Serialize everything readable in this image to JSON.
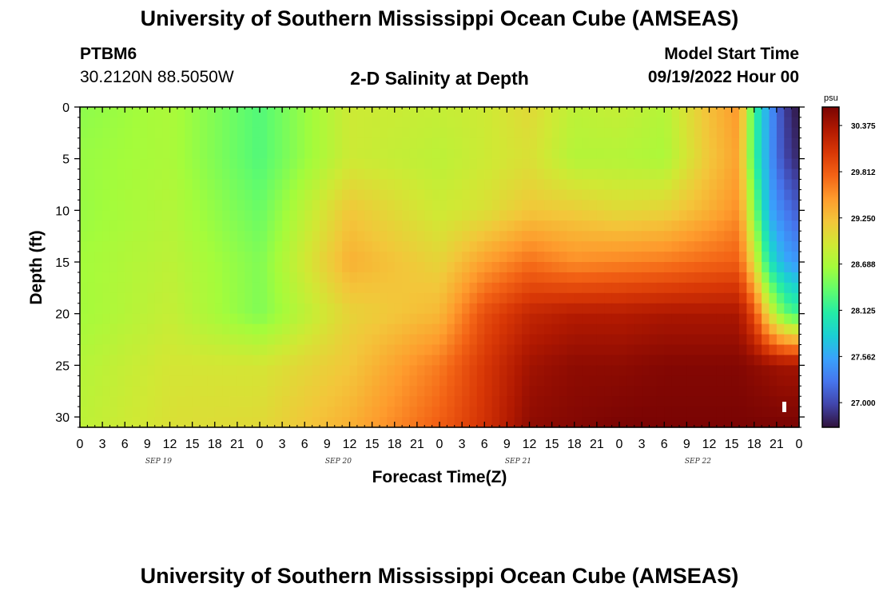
{
  "header": {
    "title": "University of Southern Mississippi Ocean Cube (AMSEAS)",
    "station": "PTBM6",
    "coordinates": "30.2120N  88.5050W",
    "subtitle": "2-D Salinity at Depth",
    "model_start_label": "Model Start Time",
    "model_start_value": "09/19/2022 Hour 00"
  },
  "footer": {
    "title": "University of Southern Mississippi Ocean Cube (AMSEAS)"
  },
  "chart_data": {
    "type": "heatmap",
    "xlabel": "Forecast Time(Z)",
    "ylabel": "Depth (ft)",
    "x_hours": [
      0,
      96
    ],
    "x_tick_labels": [
      "0",
      "3",
      "6",
      "9",
      "12",
      "15",
      "18",
      "21",
      "0",
      "3",
      "6",
      "9",
      "12",
      "15",
      "18",
      "21",
      "0",
      "3",
      "6",
      "9",
      "12",
      "15",
      "18",
      "21",
      "0",
      "3",
      "6",
      "9",
      "12",
      "15",
      "18",
      "21",
      "0"
    ],
    "day_labels": [
      "SEP 19",
      "SEP 20",
      "SEP 21",
      "SEP 22"
    ],
    "ylim": [
      0,
      31
    ],
    "y_ticks": [
      0,
      5,
      10,
      15,
      20,
      25,
      30
    ],
    "colorbar": {
      "unit": "psu",
      "min": 26.7,
      "max": 30.6,
      "ticks": [
        "30.375",
        "29.812",
        "29.250",
        "28.688",
        "28.125",
        "27.562",
        "27.000"
      ],
      "tick_values": [
        30.375,
        29.812,
        29.25,
        28.688,
        28.125,
        27.562,
        27.0
      ],
      "colormap": [
        "#30123b",
        "#4145ab",
        "#4675ed",
        "#39a2fc",
        "#1bcfd4",
        "#24eca6",
        "#61fc6c",
        "#a4fc3b",
        "#d1e834",
        "#f3c63a",
        "#fe9b2d",
        "#f36315",
        "#d93806",
        "#b11901",
        "#7a0403"
      ]
    },
    "time_hours": [
      0,
      12,
      24,
      36,
      48,
      54,
      60,
      66,
      72,
      78,
      84,
      88,
      90,
      92,
      94,
      96
    ],
    "depths_ft": [
      0,
      5,
      10,
      15,
      20,
      25,
      31
    ],
    "salinity_psu": [
      [
        28.55,
        28.7,
        28.3,
        28.9,
        28.85,
        28.9,
        29.05,
        28.8,
        28.85,
        28.75,
        29.25,
        29.5,
        28.2,
        27.5,
        26.95,
        26.7
      ],
      [
        28.6,
        28.7,
        28.3,
        28.9,
        28.8,
        28.9,
        29.0,
        28.75,
        28.75,
        28.7,
        29.2,
        29.45,
        28.2,
        27.5,
        27.0,
        26.8
      ],
      [
        28.6,
        28.75,
        28.4,
        29.2,
        28.9,
        29.0,
        29.2,
        29.15,
        29.05,
        29.1,
        29.35,
        29.55,
        28.5,
        27.6,
        27.3,
        27.1
      ],
      [
        28.65,
        28.8,
        28.5,
        29.35,
        29.1,
        29.45,
        29.7,
        29.55,
        29.6,
        29.65,
        29.75,
        29.8,
        29.0,
        28.0,
        27.6,
        27.45
      ],
      [
        28.65,
        28.85,
        28.5,
        29.1,
        29.3,
        29.9,
        30.2,
        30.3,
        30.3,
        30.35,
        30.35,
        30.35,
        29.9,
        29.0,
        28.4,
        28.2
      ],
      [
        28.75,
        28.95,
        28.95,
        29.2,
        29.65,
        30.05,
        30.4,
        30.5,
        30.5,
        30.55,
        30.55,
        30.55,
        30.5,
        30.45,
        30.4,
        30.4
      ],
      [
        28.8,
        29.0,
        29.05,
        29.35,
        29.8,
        30.1,
        30.5,
        30.55,
        30.6,
        30.6,
        30.6,
        30.6,
        30.6,
        30.6,
        30.6,
        30.6
      ]
    ]
  }
}
